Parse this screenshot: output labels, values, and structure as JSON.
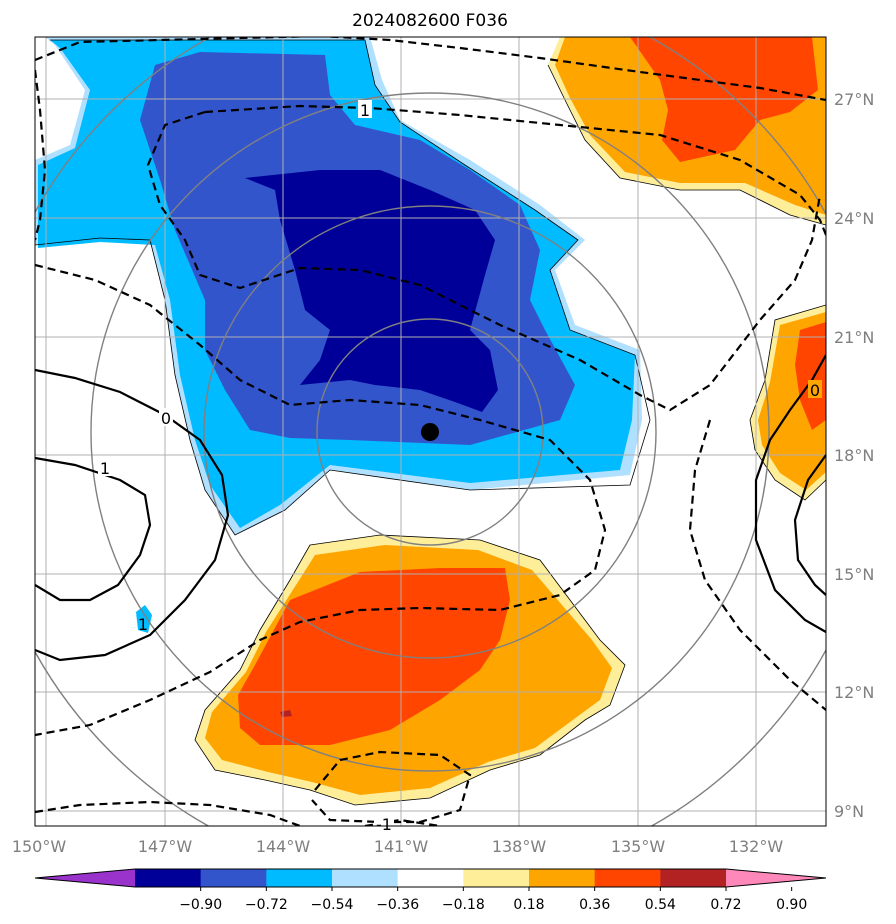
{
  "title": "2024082600 F036",
  "longitude_labels": [
    "150°W",
    "147°W",
    "144°W",
    "141°W",
    "138°W",
    "135°W",
    "132°W"
  ],
  "latitude_labels": [
    "27°N",
    "24°N",
    "21°N",
    "18°N",
    "15°N",
    "12°N",
    "9°N"
  ],
  "contour_labels": [
    "1",
    "0",
    "1",
    "0",
    "-1",
    "1"
  ],
  "colorbar": {
    "tick_labels": [
      "−0.90",
      "−0.72",
      "−0.54",
      "−0.36",
      "−0.18",
      "0.18",
      "0.36",
      "0.54",
      "0.72",
      "0.90"
    ],
    "colors": [
      "#9933cc",
      "#000099",
      "#3355cc",
      "#00bbff",
      "#b0e0ff",
      "#ffffff",
      "#ffee99",
      "#ffa500",
      "#ff4500",
      "#b22222",
      "#ff88bb"
    ]
  },
  "storm_center_marker": "filled-black-dot"
}
